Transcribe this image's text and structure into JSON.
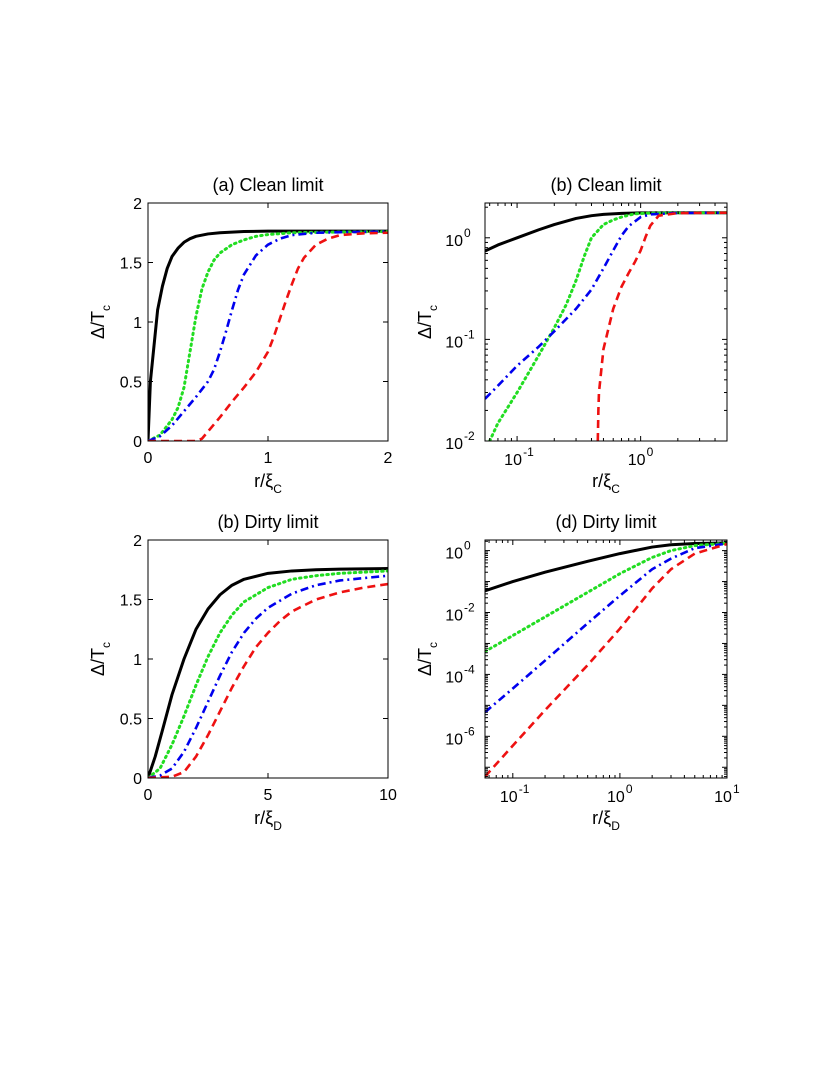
{
  "chart_data": [
    {
      "id": "a",
      "type": "line",
      "title": "(a) Clean limit",
      "xscale": "linear",
      "yscale": "linear",
      "xlim": [
        0,
        2
      ],
      "ylim": [
        0,
        2
      ],
      "xticks": [
        "0",
        "1",
        "2"
      ],
      "yticks": [
        "0",
        "0.5",
        "1",
        "1.5",
        "2"
      ],
      "xlabel_main": "r/ξ",
      "xlabel_sub": "C",
      "ylabel_main": "Δ/T",
      "ylabel_sub": "c",
      "series": [
        {
          "name": "black solid",
          "color": "#000000",
          "style": "solid",
          "x": [
            0,
            0.02,
            0.05,
            0.08,
            0.12,
            0.16,
            0.2,
            0.25,
            0.3,
            0.35,
            0.4,
            0.5,
            0.6,
            0.8,
            1.0,
            1.5,
            2.0
          ],
          "y": [
            0,
            0.5,
            0.8,
            1.1,
            1.3,
            1.45,
            1.55,
            1.62,
            1.67,
            1.7,
            1.72,
            1.74,
            1.75,
            1.76,
            1.764,
            1.764,
            1.764
          ]
        },
        {
          "name": "green dotted",
          "color": "#22dd22",
          "style": "dotted",
          "x": [
            0,
            0.1,
            0.2,
            0.25,
            0.3,
            0.35,
            0.4,
            0.45,
            0.5,
            0.55,
            0.6,
            0.7,
            0.8,
            0.9,
            1.0,
            1.2,
            1.5,
            2.0
          ],
          "y": [
            0,
            0.05,
            0.18,
            0.28,
            0.45,
            0.75,
            1.05,
            1.28,
            1.42,
            1.52,
            1.58,
            1.65,
            1.69,
            1.72,
            1.735,
            1.75,
            1.755,
            1.76
          ]
        },
        {
          "name": "blue dash-dot",
          "color": "#0000ee",
          "style": "dashdot",
          "x": [
            0,
            0.1,
            0.2,
            0.3,
            0.4,
            0.5,
            0.55,
            0.6,
            0.65,
            0.7,
            0.75,
            0.8,
            0.9,
            1.0,
            1.1,
            1.2,
            1.4,
            1.6,
            2.0
          ],
          "y": [
            0,
            0.04,
            0.13,
            0.25,
            0.37,
            0.5,
            0.6,
            0.75,
            0.92,
            1.1,
            1.27,
            1.4,
            1.56,
            1.65,
            1.7,
            1.73,
            1.75,
            1.755,
            1.76
          ]
        },
        {
          "name": "red dashed",
          "color": "#ee1111",
          "style": "dashed",
          "x": [
            0,
            0.2,
            0.4,
            0.45,
            0.5,
            0.6,
            0.7,
            0.8,
            0.9,
            1.0,
            1.05,
            1.1,
            1.15,
            1.2,
            1.25,
            1.3,
            1.4,
            1.5,
            1.6,
            1.8,
            2.0
          ],
          "y": [
            0,
            0,
            0,
            0.02,
            0.08,
            0.2,
            0.33,
            0.45,
            0.58,
            0.75,
            0.88,
            1.03,
            1.18,
            1.32,
            1.45,
            1.54,
            1.65,
            1.7,
            1.73,
            1.745,
            1.75
          ]
        }
      ]
    },
    {
      "id": "b",
      "type": "line",
      "title": "(b) Clean limit",
      "xscale": "log",
      "yscale": "log",
      "xlim": [
        0.055,
        5
      ],
      "ylim": [
        0.01,
        2.2
      ],
      "xticks": [
        {
          "v": 0.1,
          "exp": "-1"
        },
        {
          "v": 1,
          "exp": "0"
        }
      ],
      "yticks": [
        {
          "v": 0.01,
          "exp": "-2"
        },
        {
          "v": 0.1,
          "exp": "-1"
        },
        {
          "v": 1,
          "exp": "0"
        }
      ],
      "xlabel_main": "r/ξ",
      "xlabel_sub": "C",
      "ylabel_main": "Δ/T",
      "ylabel_sub": "c",
      "series": [
        {
          "name": "black solid",
          "color": "#000000",
          "style": "solid",
          "x": [
            0.055,
            0.07,
            0.1,
            0.15,
            0.2,
            0.3,
            0.4,
            0.5,
            0.7,
            1.0,
            2.0,
            5.0
          ],
          "y": [
            0.74,
            0.85,
            1.0,
            1.2,
            1.35,
            1.55,
            1.65,
            1.7,
            1.74,
            1.76,
            1.764,
            1.764
          ]
        },
        {
          "name": "green dotted",
          "color": "#22dd22",
          "style": "dotted",
          "x": [
            0.06,
            0.07,
            0.1,
            0.15,
            0.2,
            0.25,
            0.3,
            0.35,
            0.4,
            0.5,
            0.6,
            0.7,
            0.8,
            0.9,
            1.0,
            1.2,
            2.0,
            5.0
          ],
          "y": [
            0.01,
            0.015,
            0.03,
            0.07,
            0.13,
            0.22,
            0.38,
            0.66,
            1.0,
            1.35,
            1.5,
            1.6,
            1.67,
            1.72,
            1.735,
            1.75,
            1.76,
            1.764
          ]
        },
        {
          "name": "blue dash-dot",
          "color": "#0000ee",
          "style": "dashdot",
          "x": [
            0.055,
            0.07,
            0.1,
            0.15,
            0.2,
            0.3,
            0.4,
            0.5,
            0.6,
            0.7,
            0.8,
            1.0,
            1.2,
            2.0,
            5.0
          ],
          "y": [
            0.026,
            0.035,
            0.055,
            0.085,
            0.12,
            0.2,
            0.31,
            0.5,
            0.75,
            1.05,
            1.3,
            1.6,
            1.7,
            1.755,
            1.764
          ]
        },
        {
          "name": "red dashed",
          "color": "#ee1111",
          "style": "dashed",
          "x": [
            0.45,
            0.455,
            0.46,
            0.5,
            0.6,
            0.7,
            0.8,
            0.9,
            1.0,
            1.1,
            1.2,
            1.4,
            2.0,
            5.0
          ],
          "y": [
            0.01,
            0.02,
            0.03,
            0.08,
            0.2,
            0.33,
            0.45,
            0.58,
            0.75,
            1.03,
            1.32,
            1.65,
            1.75,
            1.764
          ]
        }
      ]
    },
    {
      "id": "c",
      "type": "line",
      "title": "(b) Dirty limit",
      "xscale": "linear",
      "yscale": "linear",
      "xlim": [
        0,
        10
      ],
      "ylim": [
        0,
        2
      ],
      "xticks": [
        "0",
        "5",
        "10"
      ],
      "yticks": [
        "0",
        "0.5",
        "1",
        "1.5",
        "2"
      ],
      "xlabel_main": "r/ξ",
      "xlabel_sub": "D",
      "ylabel_main": "Δ/T",
      "ylabel_sub": "c",
      "series": [
        {
          "name": "black solid",
          "color": "#000000",
          "style": "solid",
          "x": [
            0,
            0.3,
            0.6,
            1.0,
            1.5,
            2.0,
            2.5,
            3.0,
            3.5,
            4.0,
            5.0,
            6.0,
            7.0,
            8.0,
            10.0
          ],
          "y": [
            0,
            0.18,
            0.4,
            0.7,
            1.0,
            1.25,
            1.42,
            1.54,
            1.62,
            1.67,
            1.72,
            1.74,
            1.75,
            1.755,
            1.76
          ]
        },
        {
          "name": "green dotted",
          "color": "#22dd22",
          "style": "dotted",
          "x": [
            0,
            0.5,
            1.0,
            1.5,
            2.0,
            2.5,
            3.0,
            3.5,
            4.0,
            5.0,
            6.0,
            7.0,
            8.0,
            9.0,
            10.0
          ],
          "y": [
            0,
            0.08,
            0.28,
            0.52,
            0.78,
            1.02,
            1.22,
            1.37,
            1.48,
            1.6,
            1.67,
            1.7,
            1.72,
            1.73,
            1.74
          ]
        },
        {
          "name": "blue dash-dot",
          "color": "#0000ee",
          "style": "dashdot",
          "x": [
            0,
            0.5,
            1.0,
            1.5,
            2.0,
            2.5,
            3.0,
            3.5,
            4.0,
            4.5,
            5.0,
            6.0,
            7.0,
            8.0,
            9.0,
            10.0
          ],
          "y": [
            0,
            0.02,
            0.08,
            0.22,
            0.42,
            0.64,
            0.86,
            1.06,
            1.22,
            1.34,
            1.43,
            1.55,
            1.62,
            1.66,
            1.68,
            1.7
          ]
        },
        {
          "name": "red dashed",
          "color": "#ee1111",
          "style": "dashed",
          "x": [
            0,
            1.0,
            1.5,
            2.0,
            2.5,
            3.0,
            3.5,
            4.0,
            4.5,
            5.0,
            5.5,
            6.0,
            7.0,
            8.0,
            9.0,
            10.0
          ],
          "y": [
            0,
            0.01,
            0.05,
            0.18,
            0.36,
            0.56,
            0.76,
            0.94,
            1.1,
            1.22,
            1.32,
            1.4,
            1.5,
            1.56,
            1.6,
            1.63
          ]
        }
      ]
    },
    {
      "id": "d",
      "type": "line",
      "title": "(d) Dirty limit",
      "xscale": "log",
      "yscale": "log",
      "xlim": [
        0.055,
        10
      ],
      "ylim": [
        4.5e-08,
        2.2
      ],
      "xticks": [
        {
          "v": 0.1,
          "exp": "-1"
        },
        {
          "v": 1,
          "exp": "0"
        },
        {
          "v": 10,
          "exp": "1"
        }
      ],
      "yticks": [
        {
          "v": 1e-06,
          "exp": "-6"
        },
        {
          "v": 0.0001,
          "exp": "-4"
        },
        {
          "v": 0.01,
          "exp": "-2"
        },
        {
          "v": 1,
          "exp": "0"
        }
      ],
      "xlabel_main": "r/ξ",
      "xlabel_sub": "D",
      "ylabel_main": "Δ/T",
      "ylabel_sub": "c",
      "series": [
        {
          "name": "black solid",
          "color": "#000000",
          "style": "solid",
          "x": [
            0.055,
            0.1,
            0.2,
            0.5,
            1.0,
            2.0,
            3.0,
            5.0,
            10.0
          ],
          "y": [
            0.05,
            0.1,
            0.2,
            0.45,
            0.8,
            1.3,
            1.55,
            1.7,
            1.76
          ]
        },
        {
          "name": "green dotted",
          "color": "#22dd22",
          "style": "dotted",
          "x": [
            0.055,
            0.1,
            0.2,
            0.5,
            1.0,
            2.0,
            3.0,
            5.0,
            10.0
          ],
          "y": [
            0.00055,
            0.0018,
            0.0072,
            0.045,
            0.18,
            0.6,
            1.0,
            1.45,
            1.74
          ]
        },
        {
          "name": "blue dash-dot",
          "color": "#0000ee",
          "style": "dashdot",
          "x": [
            0.055,
            0.1,
            0.2,
            0.5,
            1.0,
            2.0,
            3.0,
            5.0,
            10.0
          ],
          "y": [
            6e-06,
            3.5e-05,
            0.00028,
            0.0045,
            0.035,
            0.25,
            0.55,
            1.2,
            1.7
          ]
        },
        {
          "name": "red dashed",
          "color": "#ee1111",
          "style": "dashed",
          "x": [
            0.055,
            0.1,
            0.2,
            0.5,
            1.0,
            2.0,
            3.0,
            5.0,
            10.0
          ],
          "y": [
            5e-08,
            5e-07,
            7e-06,
            0.0002,
            0.003,
            0.06,
            0.25,
            0.8,
            1.63
          ]
        }
      ]
    }
  ]
}
